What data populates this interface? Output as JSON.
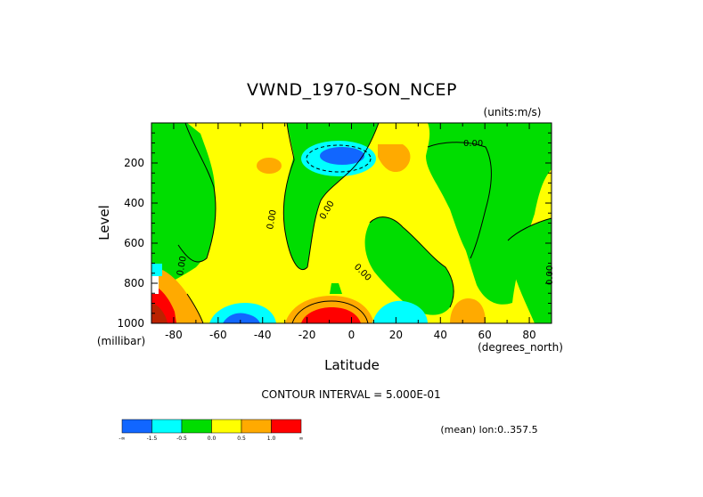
{
  "chart_data": {
    "type": "heatmap",
    "title": "VWND_1970-SON_NCEP",
    "units_label": "(units:m/s)",
    "xlabel": "Latitude",
    "ylabel": "Level",
    "x_units_label": "(degrees_north)",
    "y_units_label": "(millibar)",
    "xlim": [
      -90,
      90
    ],
    "ylim": [
      1000,
      0
    ],
    "x_ticks": [
      -80,
      -60,
      -40,
      -20,
      0,
      20,
      40,
      60,
      80
    ],
    "y_ticks": [
      200,
      400,
      600,
      800,
      1000
    ],
    "contour_interval_text": "CONTOUR INTERVAL = 5.000E-01",
    "mean_text": "(mean) lon:0..357.5",
    "contour_labels": [
      "0.00",
      "0.00",
      "0.00",
      "0.00",
      "0.00",
      "0.00"
    ],
    "legend": {
      "colors": [
        "#1166ff",
        "#00ffff",
        "#00dd00",
        "#ffff00",
        "#ffaa00",
        "#ff0000"
      ],
      "tick_labels": [
        "-∞",
        "-1.5",
        "-0.5",
        "0.0",
        "0.5",
        "1.0",
        "∞"
      ]
    },
    "features": [
      {
        "lat": -10,
        "level": 160,
        "value": -1.5
      },
      {
        "lat": -12,
        "level": 960,
        "value": 1.5
      },
      {
        "lat": -52,
        "level": 950,
        "value": -1.0
      },
      {
        "lat": 20,
        "level": 950,
        "value": -1.0
      },
      {
        "lat": 55,
        "level": 950,
        "value": 0.5
      },
      {
        "lat": -83,
        "level": 920,
        "value": 1.0
      }
    ]
  },
  "colors": {
    "green": "#00dd00",
    "yellow": "#ffff00",
    "orange": "#ffaa00",
    "cyan": "#00ffff",
    "blue": "#1166ff",
    "red": "#ff0000",
    "darkred": "#bb2200"
  }
}
